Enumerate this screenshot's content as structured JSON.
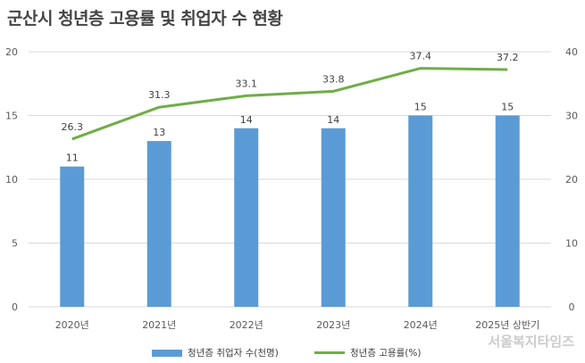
{
  "title": "군산시 청년층 고용률 및 취업자 수 현황",
  "watermark": "서울복지타임즈",
  "colors": {
    "bar": "#5b9bd5",
    "line": "#70ad47",
    "grid": "#d9d9d9"
  },
  "chart_data": {
    "type": "bar",
    "title": "군산시 청년층 고용률 및 취업자 수 현황",
    "categories": [
      "2020년",
      "2021년",
      "2022년",
      "2023년",
      "2024년",
      "2025년 상반기"
    ],
    "series": [
      {
        "name": "청년층 취업자 수(천명)",
        "type": "bar",
        "axis": "left",
        "values": [
          11,
          13,
          14,
          14,
          15,
          15
        ]
      },
      {
        "name": "청년층 고용률(%)",
        "type": "line",
        "axis": "right",
        "values": [
          26.3,
          31.3,
          33.1,
          33.8,
          37.4,
          37.2
        ]
      }
    ],
    "ylim_left": [
      0,
      20
    ],
    "yticks_left": [
      "0",
      "5",
      "10",
      "15",
      "20"
    ],
    "ylim_right": [
      0,
      40
    ],
    "yticks_right": [
      "0",
      "10",
      "20",
      "30",
      "40"
    ],
    "grid": true,
    "legend": "bottom"
  }
}
